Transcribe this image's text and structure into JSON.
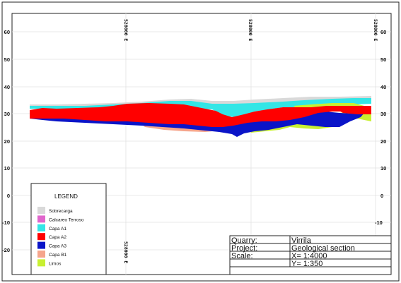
{
  "section": {
    "y_ticks": [
      "60",
      "50",
      "40",
      "30",
      "20",
      "10",
      "0",
      "-10",
      "-20"
    ],
    "y_ticks_right": [
      "60",
      "50",
      "40",
      "30",
      "20",
      "10",
      "0",
      "-10"
    ],
    "easting_top": [
      "528000 E",
      "528000 E",
      "528000 E"
    ],
    "easting_bottom": "528000 E"
  },
  "legend": {
    "title": "LEGEND",
    "items": [
      {
        "label": "Sobrecarga",
        "color": "#d9d9d9"
      },
      {
        "label": "Calcareo Terroso",
        "color": "#e066cc"
      },
      {
        "label": "Capa A1",
        "color": "#33e6e6"
      },
      {
        "label": "Capa A2",
        "color": "#ff0000"
      },
      {
        "label": "Capa A3",
        "color": "#0a14c8"
      },
      {
        "label": "Capa B1",
        "color": "#f5a58c"
      },
      {
        "label": "Limos",
        "color": "#c8f032"
      }
    ]
  },
  "title_block": {
    "quarry_label": "Quarry:",
    "quarry_value": "Virrila",
    "project_label": "Project:",
    "project_value": "Geological section",
    "scale_label": "Scale:",
    "scale_x": "X= 1:4000",
    "scale_y": "Y= 1:350"
  }
}
